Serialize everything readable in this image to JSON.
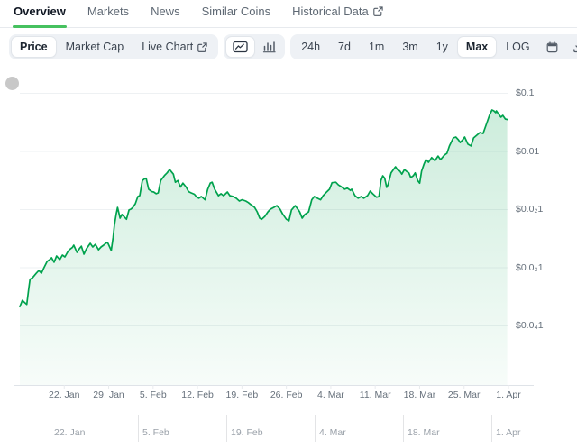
{
  "colors": {
    "accent_green": "#46c15f",
    "line_green": "#00a24d",
    "pill_bg": "#eef1f5",
    "grid": "#eef1f3",
    "axis_line": "#dfe3e8",
    "axis_text": "#66707b",
    "navigator_text": "#9aa1a9"
  },
  "tabs": {
    "items": [
      {
        "label": "Overview",
        "active": true
      },
      {
        "label": "Markets",
        "active": false
      },
      {
        "label": "News",
        "active": false
      },
      {
        "label": "Similar Coins",
        "active": false
      },
      {
        "label": "Historical Data",
        "active": false,
        "external_icon": true
      }
    ]
  },
  "toolbar": {
    "metric_group": [
      {
        "label": "Price",
        "active": true
      },
      {
        "label": "Market Cap",
        "active": false
      },
      {
        "label": "Live Chart",
        "active": false,
        "external_icon": true
      }
    ],
    "chart_type_group": [
      {
        "icon": "line-chart-icon",
        "active": true
      },
      {
        "icon": "bar-chart-icon",
        "active": false
      }
    ],
    "range_group": {
      "ranges": [
        {
          "label": "24h",
          "active": false
        },
        {
          "label": "7d",
          "active": false
        },
        {
          "label": "1m",
          "active": false
        },
        {
          "label": "3m",
          "active": false
        },
        {
          "label": "1y",
          "active": false
        },
        {
          "label": "Max",
          "active": true
        },
        {
          "label": "LOG",
          "active": false
        }
      ],
      "icons": [
        "calendar-icon",
        "download-icon",
        "expand-icon"
      ]
    }
  },
  "chart_data": {
    "type": "area",
    "scale": "log",
    "unit": "USD",
    "grid": "horizontal",
    "legend": "none",
    "y_ticks": [
      {
        "label": "$0.1",
        "value": 0.1
      },
      {
        "label": "$0.01",
        "value": 0.01
      },
      {
        "label": "$0.0₂1",
        "value": 0.001
      },
      {
        "label": "$0.0₃1",
        "value": 0.0001
      },
      {
        "label": "$0.0₄1",
        "value": 1e-05
      }
    ],
    "x_ticks": [
      {
        "label": "22. Jan",
        "day": 7
      },
      {
        "label": "29. Jan",
        "day": 14
      },
      {
        "label": "5. Feb",
        "day": 21
      },
      {
        "label": "12. Feb",
        "day": 28
      },
      {
        "label": "19. Feb",
        "day": 35
      },
      {
        "label": "26. Feb",
        "day": 42
      },
      {
        "label": "4. Mar",
        "day": 49
      },
      {
        "label": "11. Mar",
        "day": 56
      },
      {
        "label": "18. Mar",
        "day": 63
      },
      {
        "label": "25. Mar",
        "day": 70
      },
      {
        "label": "1. Apr",
        "day": 77
      }
    ],
    "navigator_ticks": [
      {
        "label": "22. Jan",
        "day": 7
      },
      {
        "label": "5. Feb",
        "day": 21
      },
      {
        "label": "19. Feb",
        "day": 35
      },
      {
        "label": "4. Mar",
        "day": 49
      },
      {
        "label": "18. Mar",
        "day": 63
      },
      {
        "label": "1. Apr",
        "day": 77
      }
    ],
    "series": [
      {
        "name": "Price",
        "points": [
          [
            0,
            2.1e-05
          ],
          [
            0.4,
            2.7e-05
          ],
          [
            0.9,
            2.4e-05
          ],
          [
            1.1,
            2.3e-05
          ],
          [
            1.4,
            4.3e-05
          ],
          [
            1.6,
            6.2e-05
          ],
          [
            2,
            6.6e-05
          ],
          [
            2.6,
            7.9e-05
          ],
          [
            3,
            8.8e-05
          ],
          [
            3.4,
            7.9e-05
          ],
          [
            3.8,
            9.8e-05
          ],
          [
            4.3,
            0.000126
          ],
          [
            4.7,
            0.000135
          ],
          [
            5,
            0.000146
          ],
          [
            5.4,
            0.000122
          ],
          [
            5.8,
            0.000156
          ],
          [
            6.3,
            0.000135
          ],
          [
            6.7,
            0.000162
          ],
          [
            7.1,
            0.000151
          ],
          [
            7.5,
            0.00018
          ],
          [
            7.8,
            0.0002
          ],
          [
            8.3,
            0.00022
          ],
          [
            8.5,
            0.00024
          ],
          [
            9,
            0.00018
          ],
          [
            9.4,
            0.00021
          ],
          [
            9.7,
            0.00023
          ],
          [
            10.1,
            0.000168
          ],
          [
            10.5,
            0.000208
          ],
          [
            11.1,
            0.000258
          ],
          [
            11.5,
            0.000223
          ],
          [
            11.9,
            0.000248
          ],
          [
            12.4,
            0.0002
          ],
          [
            12.8,
            0.000223
          ],
          [
            13.2,
            0.00024
          ],
          [
            13.7,
            0.000267
          ],
          [
            13.9,
            0.000258
          ],
          [
            14.4,
            0.000194
          ],
          [
            14.7,
            0.00033
          ],
          [
            14.9,
            0.00053
          ],
          [
            15.2,
            0.00084
          ],
          [
            15.4,
            0.00107
          ],
          [
            15.8,
            0.0007
          ],
          [
            16.1,
            0.00081
          ],
          [
            16.4,
            0.00075
          ],
          [
            16.8,
            0.00067
          ],
          [
            17.2,
            0.00097
          ],
          [
            17.5,
            0.001
          ],
          [
            17.8,
            0.00107
          ],
          [
            18.2,
            0.00124
          ],
          [
            18.6,
            0.00165
          ],
          [
            18.9,
            0.00171
          ],
          [
            19.3,
            0.0031
          ],
          [
            19.6,
            0.0033
          ],
          [
            19.9,
            0.0034
          ],
          [
            20.3,
            0.0022
          ],
          [
            20.8,
            0.002
          ],
          [
            21.1,
            0.00197
          ],
          [
            21.5,
            0.00184
          ],
          [
            21.8,
            0.0019
          ],
          [
            22.2,
            0.0031
          ],
          [
            22.8,
            0.0038
          ],
          [
            23.2,
            0.0042
          ],
          [
            23.6,
            0.0048
          ],
          [
            24.2,
            0.004
          ],
          [
            24.5,
            0.0029
          ],
          [
            24.9,
            0.0031
          ],
          [
            25.3,
            0.0024
          ],
          [
            25.7,
            0.0028
          ],
          [
            26.2,
            0.0024
          ],
          [
            26.6,
            0.002
          ],
          [
            27,
            0.0019
          ],
          [
            27.5,
            0.0018
          ],
          [
            27.9,
            0.0016
          ],
          [
            28.2,
            0.00154
          ],
          [
            28.6,
            0.00165
          ],
          [
            29.2,
            0.00145
          ],
          [
            29.6,
            0.0022
          ],
          [
            30,
            0.0028
          ],
          [
            30.3,
            0.0029
          ],
          [
            30.7,
            0.0022
          ],
          [
            31.3,
            0.0017
          ],
          [
            31.7,
            0.00184
          ],
          [
            32.1,
            0.0017
          ],
          [
            32.7,
            0.00197
          ],
          [
            33.1,
            0.0017
          ],
          [
            33.6,
            0.00165
          ],
          [
            34.1,
            0.00154
          ],
          [
            34.6,
            0.00138
          ],
          [
            35,
            0.00145
          ],
          [
            35.6,
            0.00138
          ],
          [
            36,
            0.0013
          ],
          [
            36.4,
            0.0012
          ],
          [
            37,
            0.00107
          ],
          [
            37.4,
            0.0009
          ],
          [
            37.8,
            0.0007
          ],
          [
            38.1,
            0.00067
          ],
          [
            38.6,
            0.00075
          ],
          [
            39.1,
            0.0009
          ],
          [
            39.5,
            0.001
          ],
          [
            40,
            0.00107
          ],
          [
            40.5,
            0.00115
          ],
          [
            41,
            0.001
          ],
          [
            41.4,
            0.00083
          ],
          [
            42,
            0.00067
          ],
          [
            42.4,
            0.00063
          ],
          [
            42.8,
            0.00097
          ],
          [
            43.4,
            0.00115
          ],
          [
            43.8,
            0.001
          ],
          [
            44.1,
            0.0009
          ],
          [
            44.5,
            0.0007
          ],
          [
            44.9,
            0.00081
          ],
          [
            45.5,
            0.0009
          ],
          [
            46,
            0.00145
          ],
          [
            46.4,
            0.00165
          ],
          [
            46.9,
            0.00154
          ],
          [
            47.4,
            0.00145
          ],
          [
            47.8,
            0.00171
          ],
          [
            48.4,
            0.002
          ],
          [
            48.8,
            0.0022
          ],
          [
            49.2,
            0.00285
          ],
          [
            49.8,
            0.0029
          ],
          [
            50.2,
            0.0026
          ],
          [
            50.6,
            0.00245
          ],
          [
            51.2,
            0.0022
          ],
          [
            51.6,
            0.0023
          ],
          [
            52.1,
            0.0021
          ],
          [
            52.3,
            0.0022
          ],
          [
            52.8,
            0.00171
          ],
          [
            53.3,
            0.00154
          ],
          [
            53.8,
            0.00165
          ],
          [
            54.2,
            0.00154
          ],
          [
            54.8,
            0.00171
          ],
          [
            55.2,
            0.00204
          ],
          [
            55.6,
            0.00184
          ],
          [
            56.2,
            0.0016
          ],
          [
            56.6,
            0.00165
          ],
          [
            56.9,
            0.0031
          ],
          [
            57.2,
            0.00375
          ],
          [
            57.5,
            0.0034
          ],
          [
            57.8,
            0.00236
          ],
          [
            58,
            0.0026
          ],
          [
            58.5,
            0.0042
          ],
          [
            59,
            0.005
          ],
          [
            59.2,
            0.00536
          ],
          [
            59.5,
            0.0048
          ],
          [
            59.9,
            0.0045
          ],
          [
            60.2,
            0.004
          ],
          [
            60.6,
            0.0048
          ],
          [
            60.9,
            0.0045
          ],
          [
            61.3,
            0.0042
          ],
          [
            61.6,
            0.0035
          ],
          [
            62,
            0.00375
          ],
          [
            62.3,
            0.0042
          ],
          [
            62.7,
            0.0031
          ],
          [
            63,
            0.0028
          ],
          [
            63.3,
            0.0045
          ],
          [
            63.7,
            0.006
          ],
          [
            64,
            0.0071
          ],
          [
            64.4,
            0.0064
          ],
          [
            64.9,
            0.0077
          ],
          [
            65.4,
            0.0068
          ],
          [
            65.9,
            0.0082
          ],
          [
            66.3,
            0.0071
          ],
          [
            66.9,
            0.0085
          ],
          [
            67.3,
            0.0091
          ],
          [
            67.7,
            0.0122
          ],
          [
            68.3,
            0.0168
          ],
          [
            68.7,
            0.0174
          ],
          [
            69.1,
            0.0156
          ],
          [
            69.4,
            0.014
          ],
          [
            69.8,
            0.0156
          ],
          [
            70.1,
            0.0174
          ],
          [
            70.6,
            0.0131
          ],
          [
            71.1,
            0.0122
          ],
          [
            71.5,
            0.0168
          ],
          [
            72,
            0.0187
          ],
          [
            72.5,
            0.0208
          ],
          [
            73,
            0.02
          ],
          [
            73.4,
            0.0267
          ],
          [
            74,
            0.041
          ],
          [
            74.4,
            0.0507
          ],
          [
            74.7,
            0.049
          ],
          [
            75,
            0.0456
          ],
          [
            75.1,
            0.049
          ],
          [
            75.5,
            0.0425
          ],
          [
            75.8,
            0.0381
          ],
          [
            76.1,
            0.041
          ],
          [
            76.5,
            0.0355
          ],
          [
            76.8,
            0.0347
          ]
        ]
      }
    ]
  }
}
